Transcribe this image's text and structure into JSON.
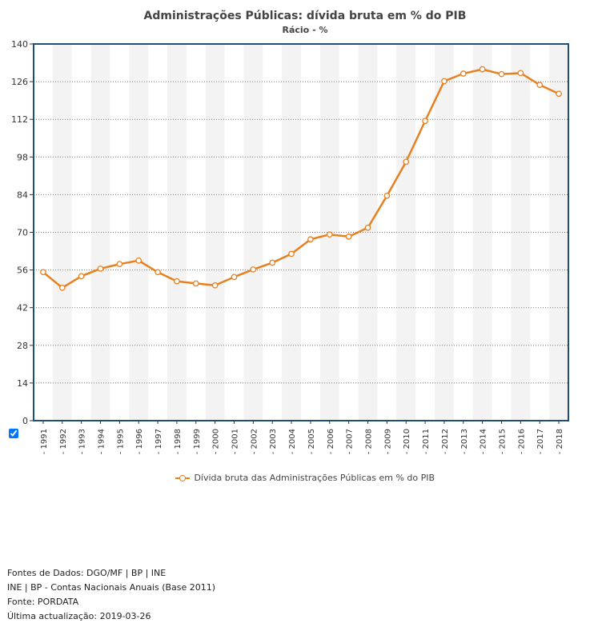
{
  "chart_data": {
    "type": "line",
    "title": "Administrações Públicas: dívida bruta em % do PIB",
    "subtitle": "Rácio - %",
    "categories": [
      "1991",
      "1992",
      "1993",
      "1994",
      "1995",
      "1996",
      "1997",
      "1998",
      "1999",
      "2000",
      "2001",
      "2002",
      "2003",
      "2004",
      "2005",
      "2006",
      "2007",
      "2008",
      "2009",
      "2010",
      "2011",
      "2012",
      "2013",
      "2014",
      "2015",
      "2016",
      "2017",
      "2018"
    ],
    "series": [
      {
        "name": "Dívida bruta das Administrações Públicas em % do PIB",
        "color": "#e8801f",
        "values": [
          55.2,
          49.4,
          53.7,
          56.5,
          58.2,
          59.5,
          55.2,
          51.8,
          51.0,
          50.3,
          53.4,
          56.2,
          58.7,
          62.0,
          67.4,
          69.2,
          68.4,
          71.7,
          83.6,
          96.2,
          111.4,
          126.2,
          129.0,
          130.6,
          128.8,
          129.2,
          124.8,
          121.5
        ]
      }
    ],
    "yticks": [
      0,
      14,
      28,
      42,
      56,
      70,
      84,
      98,
      112,
      126,
      140
    ],
    "ylim": [
      0,
      140
    ],
    "grid": true,
    "legend_position": "bottom"
  },
  "footer": {
    "line1": "Fontes de Dados: DGO/MF | BP | INE",
    "line2": "INE | BP - Contas Nacionais Anuais (Base 2011)",
    "line3": "Fonte: PORDATA",
    "line4": "Última actualização: 2019-03-26"
  }
}
